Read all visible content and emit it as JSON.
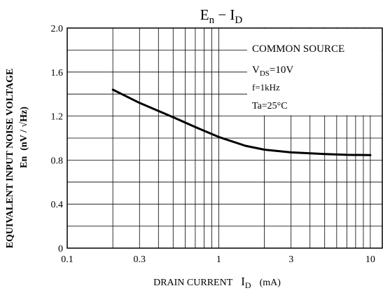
{
  "chart_data": {
    "type": "line",
    "title": {
      "main": "E",
      "main_sub": "n",
      "sep": " − ",
      "right": "I",
      "right_sub": "D"
    },
    "xlabel": {
      "main": "DRAIN CURRENT",
      "sym": "I",
      "sub": "D",
      "unit": "(mA)"
    },
    "ylabel": {
      "line1": "EQUIVALENT INPUT NOISE VOLTAGE",
      "line2a": "En",
      "line2b": "(nV / √Hz)"
    },
    "x_scale": "log",
    "xlim": [
      0.1,
      12
    ],
    "ylim": [
      0,
      2.0
    ],
    "x_ticks": [
      {
        "value": 0.1,
        "label": "0.1"
      },
      {
        "value": 0.3,
        "label": "0.3"
      },
      {
        "value": 1,
        "label": "1"
      },
      {
        "value": 3,
        "label": "3"
      },
      {
        "value": 10,
        "label": "10"
      }
    ],
    "y_ticks": [
      {
        "value": 0,
        "label": "0"
      },
      {
        "value": 0.4,
        "label": "0.4"
      },
      {
        "value": 0.8,
        "label": "0.8"
      },
      {
        "value": 1.2,
        "label": "1.2"
      },
      {
        "value": 1.6,
        "label": "1.6"
      },
      {
        "value": 2.0,
        "label": "2.0"
      }
    ],
    "grid": true,
    "conditions": {
      "line1": "COMMON SOURCE",
      "line2_sym": "V",
      "line2_sub": "DS",
      "line2_val": "=10V",
      "line3": "f=1kHz",
      "line4": "Ta=25°C"
    },
    "series": [
      {
        "x": [
          0.2,
          0.3,
          0.5,
          0.7,
          1.0,
          1.5,
          2.0,
          3.0,
          5.0,
          7.0,
          10.0
        ],
        "y": [
          1.44,
          1.32,
          1.19,
          1.1,
          1.01,
          0.93,
          0.895,
          0.87,
          0.855,
          0.848,
          0.845
        ]
      }
    ]
  }
}
